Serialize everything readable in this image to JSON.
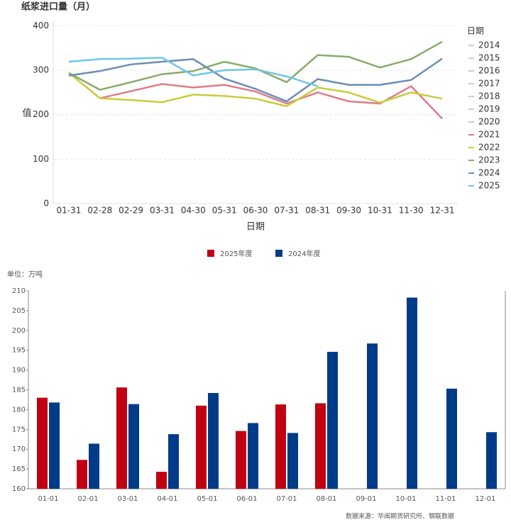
{
  "chart_data": [
    {
      "type": "line",
      "title": "纸浆进口量（月）",
      "x_label": "日期",
      "y_label": "值",
      "legend_title": "日期",
      "categories": [
        "01-31",
        "02-28",
        "02-29",
        "03-31",
        "04-30",
        "05-31",
        "06-30",
        "07-31",
        "08-31",
        "09-30",
        "10-31",
        "11-30",
        "12-31"
      ],
      "ylim": [
        0,
        410
      ],
      "yticks": [
        0,
        100,
        200,
        300,
        400
      ],
      "grid": true,
      "series": [
        {
          "name": "2014",
          "color": "#cccccc",
          "hidden": true,
          "values": [
            null,
            null,
            null,
            null,
            null,
            null,
            null,
            null,
            null,
            null,
            null,
            null,
            null
          ]
        },
        {
          "name": "2015",
          "color": "#cccccc",
          "hidden": true,
          "values": [
            null,
            null,
            null,
            null,
            null,
            null,
            null,
            null,
            null,
            null,
            null,
            null,
            null
          ]
        },
        {
          "name": "2016",
          "color": "#cccccc",
          "hidden": true,
          "values": [
            null,
            null,
            null,
            null,
            null,
            null,
            null,
            null,
            null,
            null,
            null,
            null,
            null
          ]
        },
        {
          "name": "2017",
          "color": "#cccccc",
          "hidden": true,
          "values": [
            null,
            null,
            null,
            null,
            null,
            null,
            null,
            null,
            null,
            null,
            null,
            null,
            null
          ]
        },
        {
          "name": "2018",
          "color": "#cccccc",
          "hidden": true,
          "values": [
            null,
            null,
            null,
            null,
            null,
            null,
            null,
            null,
            null,
            null,
            null,
            null,
            null
          ]
        },
        {
          "name": "2019",
          "color": "#cccccc",
          "hidden": true,
          "values": [
            null,
            null,
            null,
            null,
            null,
            null,
            null,
            null,
            null,
            null,
            null,
            null,
            null
          ]
        },
        {
          "name": "2020",
          "color": "#cccccc",
          "hidden": true,
          "values": [
            null,
            null,
            null,
            null,
            null,
            null,
            null,
            null,
            null,
            null,
            null,
            null,
            null
          ]
        },
        {
          "name": "2021",
          "color": "#e07b86",
          "values": [
            null,
            237,
            253,
            269,
            261,
            267,
            252,
            225,
            250,
            230,
            225,
            264,
            191
          ]
        },
        {
          "name": "2022",
          "color": "#c8cc3a",
          "values": [
            294,
            237,
            233,
            228,
            245,
            242,
            236,
            219,
            261,
            250,
            227,
            250,
            236
          ]
        },
        {
          "name": "2023",
          "color": "#8aab6a",
          "values": [
            294,
            256,
            273,
            291,
            298,
            319,
            304,
            273,
            334,
            330,
            306,
            325,
            364
          ]
        },
        {
          "name": "2024",
          "color": "#6a8db5",
          "values": [
            288,
            298,
            313,
            319,
            325,
            281,
            258,
            230,
            280,
            267,
            267,
            278,
            326
          ]
        },
        {
          "name": "2025",
          "color": "#6ec6e6",
          "values": [
            319,
            325,
            326,
            328,
            288,
            300,
            302,
            286,
            264,
            null,
            null,
            null,
            null
          ]
        }
      ]
    },
    {
      "type": "bar",
      "unit_label": "单位：万吨",
      "source": "数据来源：华闻期货研究所、钢联数据",
      "categories": [
        "01-01",
        "02-01",
        "03-01",
        "04-01",
        "05-01",
        "06-01",
        "07-01",
        "08-01",
        "09-01",
        "10-01",
        "11-01",
        "12-01"
      ],
      "ylim": [
        160,
        210
      ],
      "yticks": [
        160,
        165,
        170,
        175,
        180,
        185,
        190,
        195,
        200,
        205,
        210
      ],
      "series": [
        {
          "name": "2025年度",
          "color": "#c00010",
          "values": [
            183,
            167.3,
            185.6,
            164.3,
            181,
            174.6,
            181.3,
            181.6,
            null,
            null,
            null,
            null
          ]
        },
        {
          "name": "2024年度",
          "color": "#003b87",
          "values": [
            181.8,
            171.4,
            181.4,
            173.8,
            184.2,
            176.6,
            174.1,
            194.6,
            196.7,
            208.3,
            185.3,
            174.3
          ]
        }
      ]
    }
  ]
}
